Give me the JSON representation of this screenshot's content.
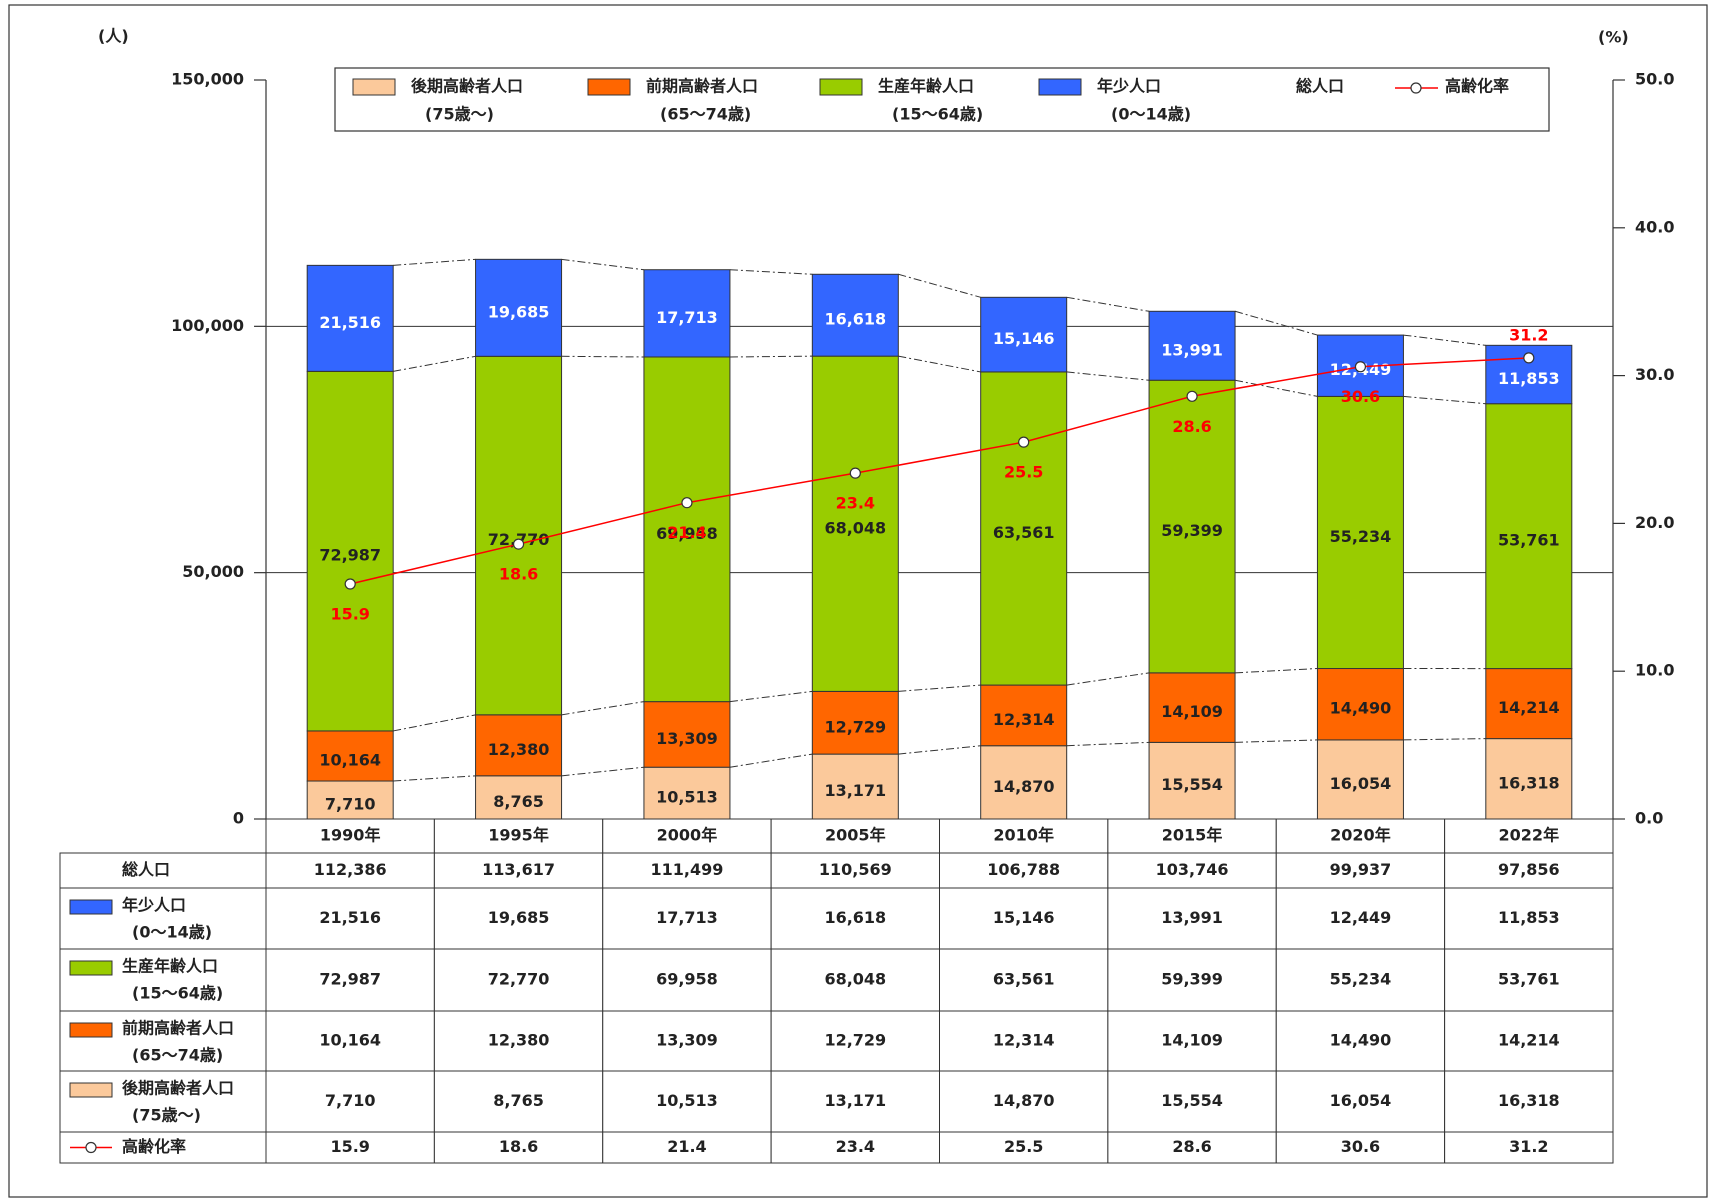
{
  "chart_data": {
    "type": "bar",
    "stacked": true,
    "ylabel": "(人)",
    "y2label": "(%)",
    "categories": [
      "1990年",
      "1995年",
      "2000年",
      "2005年",
      "2010年",
      "2015年",
      "2020年",
      "2022年"
    ],
    "ylim": [
      0,
      150000
    ],
    "yticks": [
      0,
      {
        "value": 50000,
        "label": "50,000"
      },
      {
        "value": 100000,
        "label": "100,000"
      },
      {
        "value": 150000,
        "label": "150,000"
      }
    ],
    "y2lim": [
      0,
      50
    ],
    "y2ticks": [
      {
        "value": 0,
        "label": "0.0"
      },
      {
        "value": 10,
        "label": "10.0"
      },
      {
        "value": 20,
        "label": "20.0"
      },
      {
        "value": 30,
        "label": "30.0"
      },
      {
        "value": 40,
        "label": "40.0"
      },
      {
        "value": 50,
        "label": "50.0"
      }
    ],
    "grid": true,
    "series": [
      {
        "name": "後期高齢者人口",
        "age": "(75歳〜)",
        "color": "#fbc99b",
        "label_color": "#222",
        "values": [
          7710,
          8765,
          10513,
          13171,
          14870,
          15554,
          16054,
          16318
        ],
        "value_labels": [
          "7,710",
          "8,765",
          "10,513",
          "13,171",
          "14,870",
          "15,554",
          "16,054",
          "16,318"
        ]
      },
      {
        "name": "前期高齢者人口",
        "age": "(65〜74歳)",
        "color": "#ff6600",
        "label_color": "#222",
        "values": [
          10164,
          12380,
          13309,
          12729,
          12314,
          14109,
          14490,
          14214
        ],
        "value_labels": [
          "10,164",
          "12,380",
          "13,309",
          "12,729",
          "12,314",
          "14,109",
          "14,490",
          "14,214"
        ]
      },
      {
        "name": "生産年齢人口",
        "age": "(15〜64歳)",
        "color": "#99cc00",
        "label_color": "#222",
        "values": [
          72987,
          72770,
          69958,
          68048,
          63561,
          59399,
          55234,
          53761
        ],
        "value_labels": [
          "72,987",
          "72,770",
          "69,958",
          "68,048",
          "63,561",
          "59,399",
          "55,234",
          "53,761"
        ]
      },
      {
        "name": "年少人口",
        "age": "(0〜14歳)",
        "color": "#3366ff",
        "label_color": "#ffffff",
        "values": [
          21516,
          19685,
          17713,
          16618,
          15146,
          13991,
          12449,
          11853
        ],
        "value_labels": [
          "21,516",
          "19,685",
          "17,713",
          "16,618",
          "15,146",
          "13,991",
          "12,449",
          "11,853"
        ]
      },
      {
        "name": "高齢化率",
        "type": "line",
        "axis": "y2",
        "color": "#ff0000",
        "values": [
          15.9,
          18.6,
          21.4,
          23.4,
          25.5,
          28.6,
          30.6,
          31.2
        ]
      }
    ],
    "totals": {
      "name": "総人口",
      "values": [
        112386,
        113617,
        111499,
        110569,
        106788,
        103746,
        99937,
        97856
      ],
      "value_labels": [
        "112,386",
        "113,617",
        "111,499",
        "110,569",
        "106,788",
        "103,746",
        "99,937",
        "97,856"
      ]
    }
  }
}
